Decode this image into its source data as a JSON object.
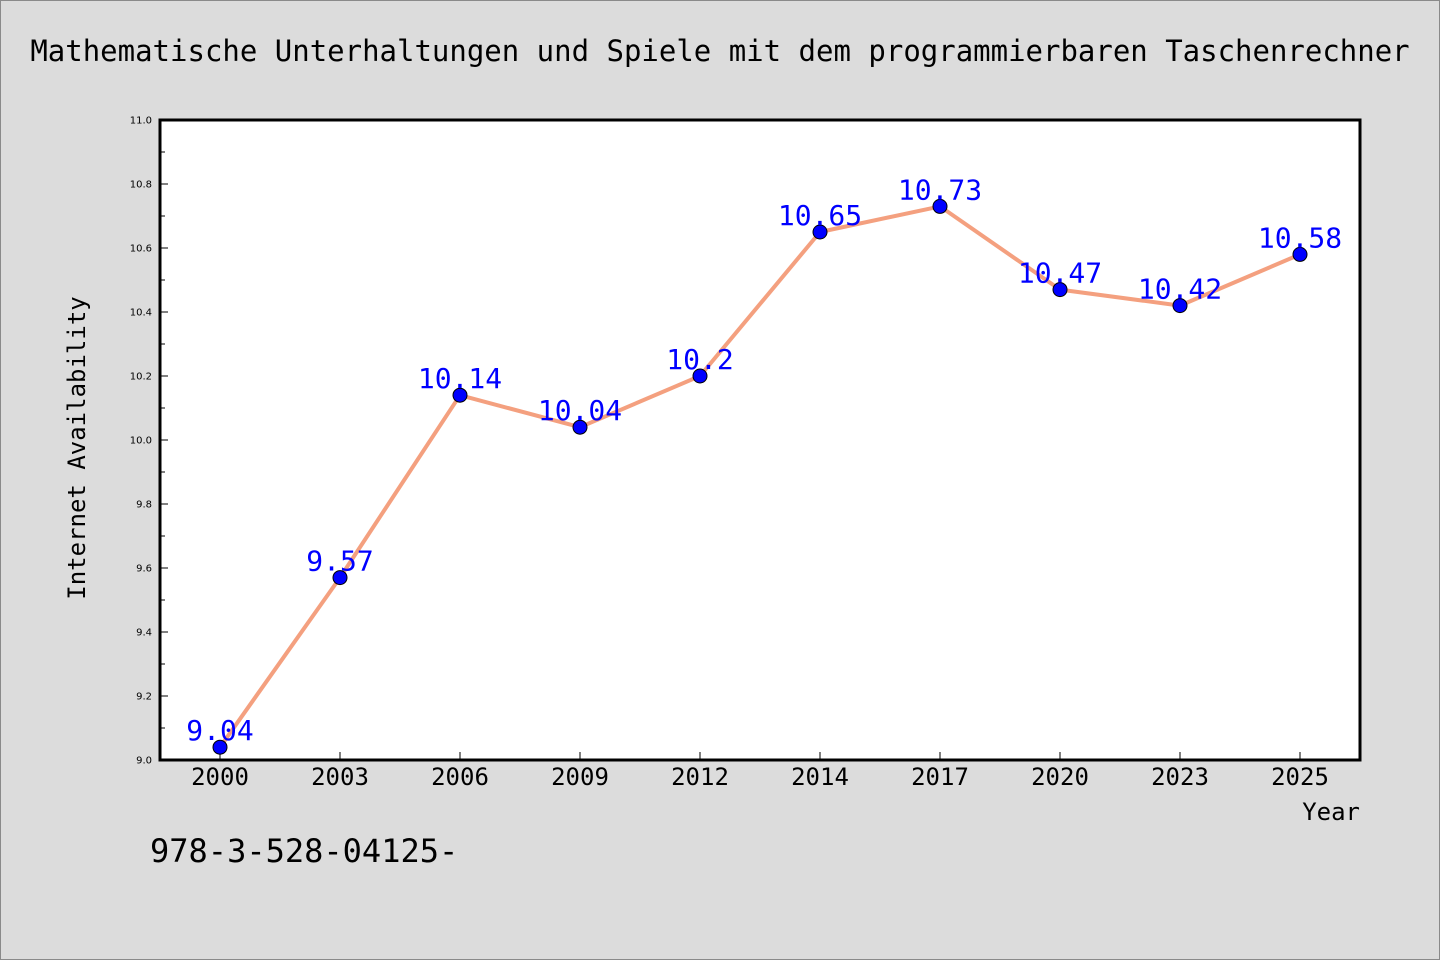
{
  "chart_data": {
    "type": "line",
    "title": "Mathematische Unterhaltungen und Spiele mit dem programmierbaren Taschenrechner",
    "xlabel": "Year",
    "ylabel": "Internet Availability",
    "categories": [
      "2000",
      "2003",
      "2006",
      "2009",
      "2012",
      "2014",
      "2017",
      "2020",
      "2023",
      "2025"
    ],
    "values": [
      9.04,
      9.57,
      10.14,
      10.04,
      10.2,
      10.65,
      10.73,
      10.47,
      10.42,
      10.58
    ],
    "data_labels": [
      "9.04",
      "9.57",
      "10.14",
      "10.04",
      "10.2",
      "10.65",
      "10.73",
      "10.47",
      "10.42",
      "10.58"
    ],
    "ylim": [
      9.0,
      11.0
    ],
    "yticks": [
      "9.0",
      "9.2",
      "9.4",
      "9.6",
      "9.8",
      "10.0",
      "10.2",
      "10.4",
      "10.6",
      "10.8",
      "11.0"
    ],
    "grid": false,
    "colors": {
      "line": "#f4a07f",
      "marker": "#0000ff",
      "data_label": "#0000ff",
      "plot_bg": "#ffffff",
      "figure_bg": "#dcdcdc"
    }
  },
  "footer_text": "978-3-528-04125-"
}
